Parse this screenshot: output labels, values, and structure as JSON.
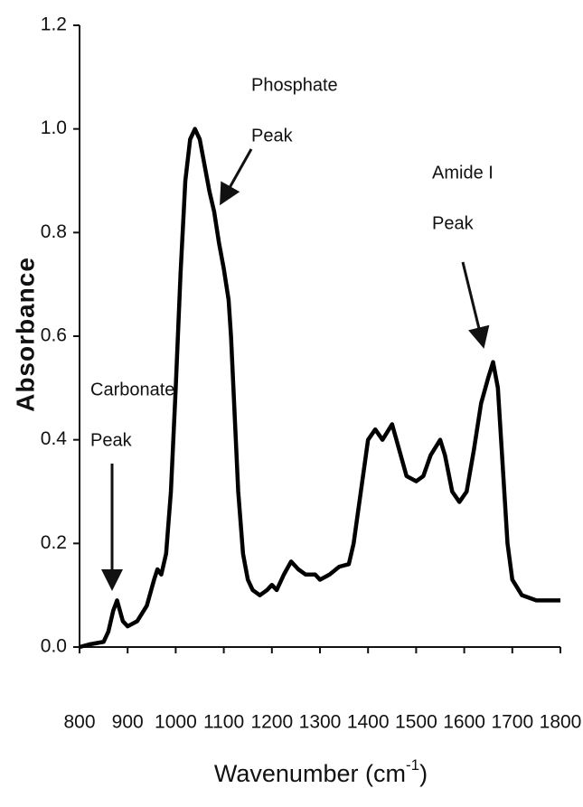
{
  "chart_data": {
    "type": "line",
    "x_label": {
      "text": "Wavenumber (cm",
      "superscript": "-1",
      "suffix": ")"
    },
    "y_label": "Absorbance",
    "x": [
      800,
      820,
      850,
      860,
      870,
      878,
      890,
      900,
      920,
      940,
      955,
      962,
      970,
      980,
      990,
      1000,
      1010,
      1020,
      1030,
      1040,
      1050,
      1060,
      1070,
      1080,
      1090,
      1100,
      1110,
      1115,
      1120,
      1130,
      1140,
      1150,
      1160,
      1175,
      1190,
      1200,
      1210,
      1225,
      1240,
      1255,
      1270,
      1290,
      1300,
      1320,
      1340,
      1360,
      1370,
      1385,
      1400,
      1415,
      1430,
      1450,
      1465,
      1480,
      1500,
      1515,
      1530,
      1550,
      1560,
      1575,
      1590,
      1605,
      1620,
      1635,
      1650,
      1660,
      1670,
      1680,
      1690,
      1700,
      1720,
      1750,
      1800
    ],
    "series": [
      {
        "color": "#000000",
        "values": [
          0.0,
          0.005,
          0.01,
          0.03,
          0.07,
          0.09,
          0.05,
          0.04,
          0.05,
          0.08,
          0.13,
          0.15,
          0.14,
          0.18,
          0.3,
          0.5,
          0.72,
          0.9,
          0.98,
          1.0,
          0.98,
          0.93,
          0.88,
          0.84,
          0.78,
          0.73,
          0.67,
          0.6,
          0.5,
          0.3,
          0.18,
          0.13,
          0.11,
          0.1,
          0.11,
          0.12,
          0.11,
          0.14,
          0.165,
          0.15,
          0.14,
          0.14,
          0.13,
          0.14,
          0.155,
          0.16,
          0.2,
          0.3,
          0.4,
          0.42,
          0.4,
          0.43,
          0.38,
          0.33,
          0.32,
          0.33,
          0.37,
          0.4,
          0.37,
          0.3,
          0.28,
          0.3,
          0.38,
          0.47,
          0.52,
          0.55,
          0.5,
          0.35,
          0.2,
          0.13,
          0.1,
          0.09,
          0.09
        ]
      }
    ],
    "xlim": [
      800,
      1800
    ],
    "xticks": [
      800,
      900,
      1000,
      1100,
      1200,
      1300,
      1400,
      1500,
      1600,
      1700,
      1800
    ],
    "ylim": [
      0,
      1.2
    ],
    "yticks": [
      {
        "value": 0,
        "label": "0.0"
      },
      0.2,
      0.4,
      0.6,
      0.8,
      {
        "value": 1,
        "label": "1.0"
      },
      1.2
    ],
    "annotations": [
      {
        "lines": [
          "Carbonate",
          "Peak"
        ]
      },
      {
        "lines": [
          "Phosphate",
          "Peak"
        ]
      },
      {
        "lines": [
          "Amide I",
          "Peak"
        ]
      }
    ]
  }
}
